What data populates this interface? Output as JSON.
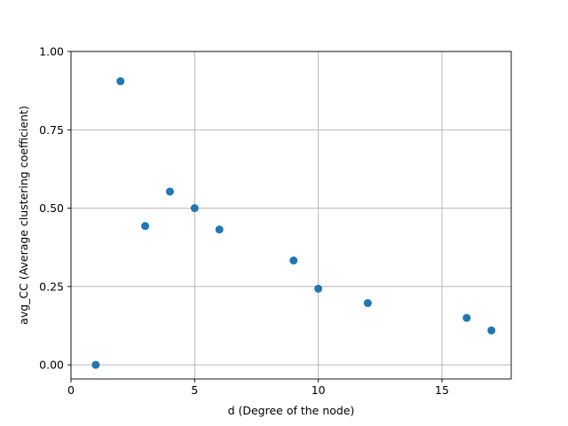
{
  "chart_data": {
    "type": "scatter",
    "title": "",
    "xlabel": "d (Degree of the node)",
    "ylabel": "avg_CC (Average clustering coefficient)",
    "xlim": [
      0,
      17.8
    ],
    "ylim": [
      -0.045,
      1.0
    ],
    "xticks": [
      0,
      5,
      10,
      15
    ],
    "xtick_labels": [
      "0",
      "5",
      "10",
      "15"
    ],
    "yticks": [
      0.0,
      0.25,
      0.5,
      0.75,
      1.0
    ],
    "ytick_labels": [
      "0.00",
      "0.25",
      "0.50",
      "0.75",
      "1.00"
    ],
    "grid": true,
    "marker_color": "#1f77b4",
    "series": [
      {
        "x": [
          1,
          2,
          3,
          4,
          5,
          6,
          9,
          10,
          12,
          16,
          17
        ],
        "y": [
          0.0,
          0.905,
          0.443,
          0.553,
          0.5,
          0.432,
          0.333,
          0.243,
          0.197,
          0.15,
          0.11
        ]
      }
    ]
  }
}
